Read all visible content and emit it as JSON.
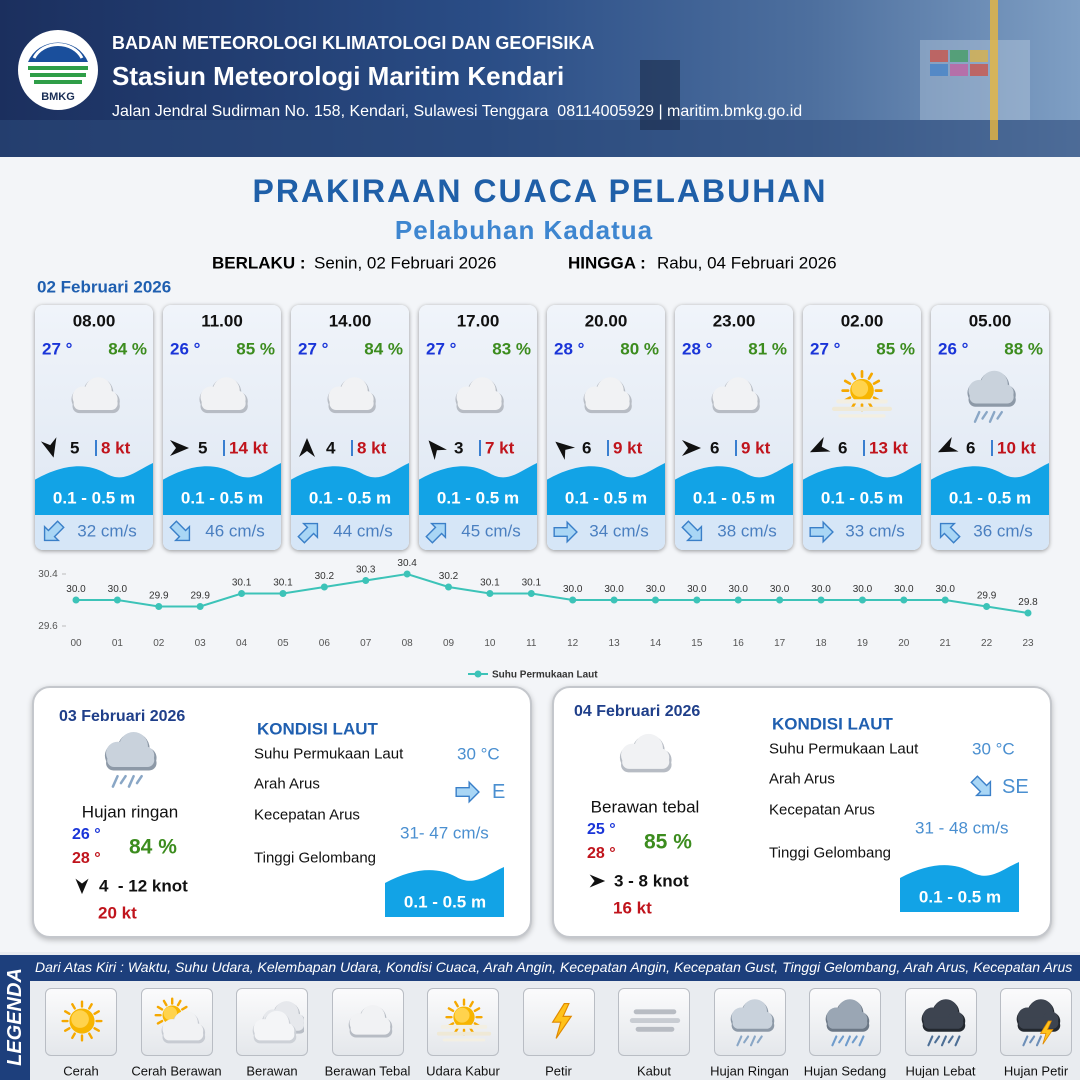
{
  "header": {
    "agency": "BADAN METEOROLOGI KLIMATOLOGI DAN GEOFISIKA",
    "station": "Stasiun Meteorologi Maritim Kendari",
    "address": "Jalan Jendral Sudirman No. 158, Kendari, Sulawesi Tenggara  08114005929 | maritim.bmkg.go.id",
    "logo": "BMKG"
  },
  "title": "PRAKIRAAN CUACA PELABUHAN",
  "port": "Pelabuhan Kadatua",
  "validity": {
    "from_label": "BERLAKU :",
    "from": "Senin, 02 Februari 2026",
    "to_label": "HINGGA :",
    "to": "Rabu, 04 Februari 2026"
  },
  "forecast": {
    "date": "02 Februari 2026",
    "slots": [
      {
        "time": "08.00",
        "temp": "27 °",
        "humidity": "84 %",
        "wind": 5,
        "gust": "8 kt",
        "wave": "0.1 - 0.5 m",
        "current": "32 cm/s"
      },
      {
        "time": "11.00",
        "temp": "26 °",
        "humidity": "85 %",
        "wind": 5,
        "gust": "14 kt",
        "wave": "0.1 - 0.5 m",
        "current": "46 cm/s"
      },
      {
        "time": "14.00",
        "temp": "27 °",
        "humidity": "84 %",
        "wind": 4,
        "gust": "8 kt",
        "wave": "0.1 - 0.5 m",
        "current": "44 cm/s"
      },
      {
        "time": "17.00",
        "temp": "27 °",
        "humidity": "83 %",
        "wind": 3,
        "gust": "7 kt",
        "wave": "0.1 - 0.5 m",
        "current": "45 cm/s"
      },
      {
        "time": "20.00",
        "temp": "28 °",
        "humidity": "80 %",
        "wind": 6,
        "gust": "9 kt",
        "wave": "0.1 - 0.5 m",
        "current": "34 cm/s"
      },
      {
        "time": "23.00",
        "temp": "28 °",
        "humidity": "81 %",
        "wind": 6,
        "gust": "9 kt",
        "wave": "0.1 - 0.5 m",
        "current": "38 cm/s"
      },
      {
        "time": "02.00",
        "temp": "27 °",
        "humidity": "85 %",
        "wind": 6,
        "gust": "13 kt",
        "wave": "0.1 - 0.5 m",
        "current": "33 cm/s"
      },
      {
        "time": "05.00",
        "temp": "26 °",
        "humidity": "88 %",
        "wind": 6,
        "gust": "10 kt",
        "wave": "0.1 - 0.5 m",
        "current": "36 cm/s"
      }
    ]
  },
  "chart_data": {
    "type": "line",
    "categories": [
      "00",
      "01",
      "02",
      "03",
      "04",
      "05",
      "06",
      "07",
      "08",
      "09",
      "10",
      "11",
      "12",
      "13",
      "14",
      "15",
      "16",
      "17",
      "18",
      "19",
      "20",
      "21",
      "22",
      "23"
    ],
    "series": [
      {
        "name": "Suhu Permukaan Laut",
        "color": "#3cc3b8",
        "values": [
          30.0,
          30.0,
          29.9,
          29.9,
          30.1,
          30.1,
          30.2,
          30.3,
          30.4,
          30.2,
          30.1,
          30.1,
          30.0,
          30.0,
          30.0,
          30.0,
          30.0,
          30.0,
          30.0,
          30.0,
          30.0,
          30.0,
          29.9,
          29.8
        ],
        "value_labels": [
          "30.0",
          "30.0",
          "29.9",
          "29.9",
          "30.1",
          "30.1",
          "30.2",
          "30.3",
          "30.4",
          "30.2",
          "30.1",
          "30.1",
          "30.0",
          "30.0",
          "30.0",
          "30.0",
          "30.0",
          "30.0",
          "30.0",
          "30.0",
          "30.0",
          "30.0",
          "29.9",
          "29.8"
        ]
      }
    ],
    "ylim": [
      29.6,
      30.4
    ],
    "yticks": [
      29.6,
      30.4
    ],
    "grid": false,
    "legend": "bottom"
  },
  "days": [
    {
      "date": "03 Februari 2026",
      "condition": "Hujan ringan",
      "temp_min": "26 °",
      "temp_max": "28 °",
      "humidity": "84 %",
      "wind": "4  - 12 knot",
      "gust": "20 kt",
      "sea": {
        "title": "KONDISI LAUT",
        "labels": [
          "Suhu Permukaan Laut",
          "Arah Arus",
          "Kecepatan Arus",
          "Tinggi Gelombang"
        ],
        "temperature": "30 °C",
        "current_dir": "E",
        "current_speed": "31- 47 cm/s",
        "wave": "0.1 - 0.5 m"
      }
    },
    {
      "date": "04 Februari 2026",
      "condition": "Berawan tebal",
      "temp_min": "25 °",
      "temp_max": "28 °",
      "humidity": "85 %",
      "wind": "3 - 8 knot",
      "gust": "16 kt",
      "sea": {
        "title": "KONDISI LAUT",
        "labels": [
          "Suhu Permukaan Laut",
          "Arah Arus",
          "Kecepatan Arus",
          "Tinggi Gelombang"
        ],
        "temperature": "30 °C",
        "current_dir": "SE",
        "current_speed": "31 - 48 cm/s",
        "wave": "0.1 - 0.5 m"
      }
    }
  ],
  "legend": {
    "title": "LEGENDA",
    "description": "Dari Atas Kiri : Waktu, Suhu Udara, Kelembapan Udara, Kondisi Cuaca, Arah Angin, Kecepatan Angin, Kecepatan Gust, Tinggi Gelombang, Arah Arus, Kecepatan Arus",
    "items": [
      "Cerah",
      "Cerah Berawan",
      "Berawan",
      "Berawan Tebal",
      "Udara Kabur",
      "Petir",
      "Kabut",
      "Hujan Ringan",
      "Hujan Sedang",
      "Hujan Lebat",
      "Hujan Petir"
    ]
  }
}
